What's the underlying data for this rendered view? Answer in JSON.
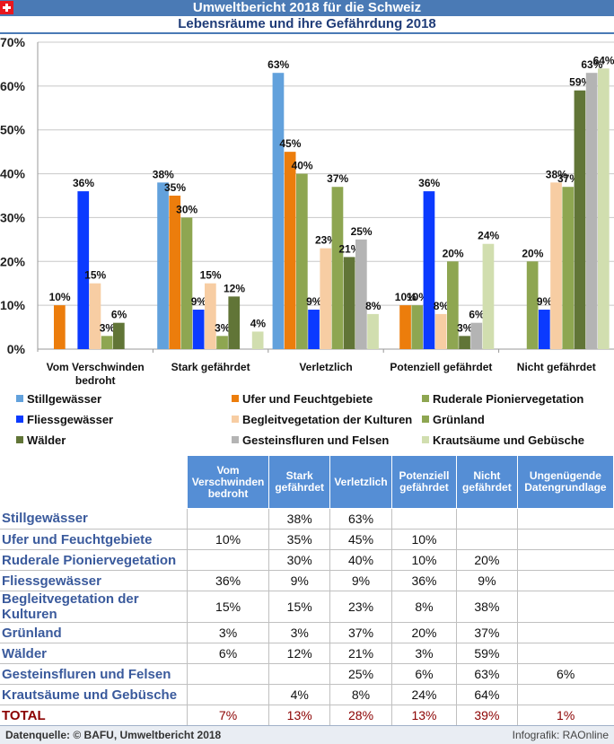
{
  "header": {
    "title": "Umweltbericht 2018 für die Schweiz",
    "subtitle": "Lebensräume und ihre Gefährdung 2018",
    "flag_icon": "swiss-flag-icon"
  },
  "chart_data": {
    "type": "bar",
    "title": "Lebensräume und ihre Gefährdung 2018",
    "xlabel": "",
    "ylabel": "",
    "ylim": [
      0,
      70
    ],
    "yticks": [
      "0%",
      "10%",
      "20%",
      "30%",
      "40%",
      "50%",
      "60%",
      "70%"
    ],
    "grid": true,
    "legend_position": "bottom",
    "categories": [
      "Vom Verschwinden bedroht",
      "Stark gefährdet",
      "Verletzlich",
      "Potenziell gefährdet",
      "Nicht gefährdet"
    ],
    "category_lines": [
      [
        "Vom Verschwinden",
        "bedroht"
      ],
      [
        "Stark gefährdet"
      ],
      [
        "Verletzlich"
      ],
      [
        "Potenziell gefährdet"
      ],
      [
        "Nicht gefährdet"
      ]
    ],
    "series": [
      {
        "name": "Stillgewässer",
        "color": "#62a1dc",
        "values": [
          null,
          38,
          63,
          null,
          null
        ]
      },
      {
        "name": "Ufer und Feuchtgebiete",
        "color": "#ec7d0c",
        "values": [
          10,
          35,
          45,
          10,
          null
        ]
      },
      {
        "name": "Ruderale Pioniervegetation",
        "color": "#8ea651",
        "values": [
          null,
          30,
          40,
          10,
          20
        ]
      },
      {
        "name": "Fliessgewässer",
        "color": "#0b3aff",
        "values": [
          36,
          9,
          9,
          36,
          9
        ]
      },
      {
        "name": "Begleitvegetation der Kulturen",
        "color": "#f7cda3",
        "values": [
          15,
          15,
          23,
          8,
          38
        ]
      },
      {
        "name": "Grünland",
        "color": "#8ea651",
        "values": [
          3,
          3,
          37,
          20,
          37
        ]
      },
      {
        "name": "Wälder",
        "color": "#617537",
        "values": [
          6,
          12,
          21,
          3,
          59
        ]
      },
      {
        "name": "Gesteinsfluren und Felsen",
        "color": "#b4b4b4",
        "values": [
          null,
          null,
          25,
          6,
          63
        ]
      },
      {
        "name": "Krautsäume und Gebüsche",
        "color": "#d1deaf",
        "values": [
          null,
          4,
          8,
          24,
          64
        ]
      }
    ]
  },
  "legend": {
    "items": [
      {
        "label": "Stillgewässer",
        "color": "#62a1dc"
      },
      {
        "label": "Ufer und Feuchtgebiete",
        "color": "#ec7d0c"
      },
      {
        "label": "Ruderale Pioniervegetation",
        "color": "#8ea651"
      },
      {
        "label": "Fliessgewässer",
        "color": "#0b3aff"
      },
      {
        "label": "Begleitvegetation der Kulturen",
        "color": "#f7cda3"
      },
      {
        "label": "Grünland",
        "color": "#8ea651"
      },
      {
        "label": "Wälder",
        "color": "#617537"
      },
      {
        "label": "Gesteinsfluren und Felsen",
        "color": "#b4b4b4"
      },
      {
        "label": "Krautsäume und Gebüsche",
        "color": "#d1deaf"
      }
    ]
  },
  "table": {
    "headers": [
      "Vom Verschwinden bedroht",
      "Stark gefährdet",
      "Verletzlich",
      "Potenziell gefährdet",
      "Nicht gefährdet",
      "Ungenügende Datengrundlage"
    ],
    "header_lines": [
      [
        "Vom",
        "Verschwinden",
        "bedroht"
      ],
      [
        "Stark",
        "gefährdet"
      ],
      [
        "Verletzlich"
      ],
      [
        "Potenziell",
        "gefährdet"
      ],
      [
        "Nicht",
        "gefährdet"
      ],
      [
        "Ungenügende",
        "Datengrundlage"
      ]
    ],
    "rows": [
      {
        "label": "Stillgewässer",
        "cells": [
          "",
          "38%",
          "63%",
          "",
          "",
          ""
        ]
      },
      {
        "label": "Ufer und Feuchtgebiete",
        "cells": [
          "10%",
          "35%",
          "45%",
          "10%",
          "",
          ""
        ]
      },
      {
        "label": "Ruderale Pioniervegetation",
        "cells": [
          "",
          "30%",
          "40%",
          "10%",
          "20%",
          ""
        ]
      },
      {
        "label": "Fliessgewässer",
        "cells": [
          "36%",
          "9%",
          "9%",
          "36%",
          "9%",
          ""
        ]
      },
      {
        "label": "Begleitvegetation der Kulturen",
        "cells": [
          "15%",
          "15%",
          "23%",
          "8%",
          "38%",
          ""
        ]
      },
      {
        "label": "Grünland",
        "cells": [
          "3%",
          "3%",
          "37%",
          "20%",
          "37%",
          ""
        ]
      },
      {
        "label": "Wälder",
        "cells": [
          "6%",
          "12%",
          "21%",
          "3%",
          "59%",
          ""
        ]
      },
      {
        "label": "Gesteinsfluren und Felsen",
        "cells": [
          "",
          "",
          "25%",
          "6%",
          "63%",
          "6%"
        ]
      },
      {
        "label": "Krautsäume und Gebüsche",
        "cells": [
          "",
          "4%",
          "8%",
          "24%",
          "64%",
          ""
        ]
      }
    ],
    "total": {
      "label": "TOTAL",
      "cells": [
        "7%",
        "13%",
        "28%",
        "13%",
        "39%",
        "1%"
      ]
    }
  },
  "footer": {
    "source": "Datenquelle: © BAFU, Umweltbericht 2018",
    "credit": "Infografik: RAOnline"
  }
}
